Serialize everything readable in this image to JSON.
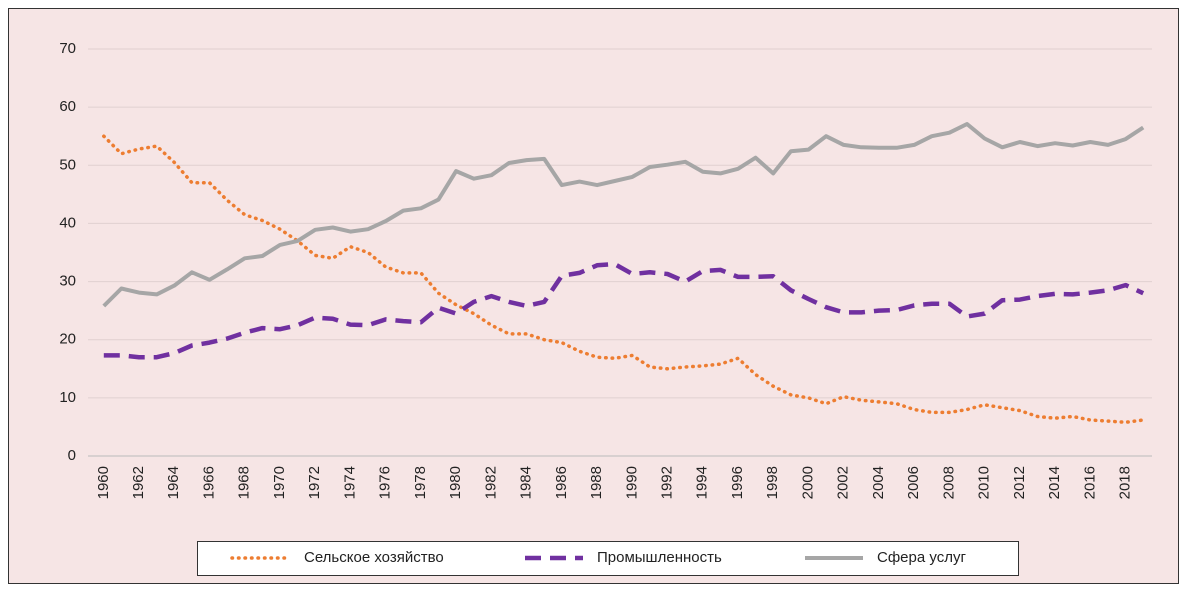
{
  "chart_data": {
    "type": "line",
    "categories": [
      "1960",
      null,
      "1962",
      null,
      "1964",
      null,
      "1966",
      null,
      "1968",
      null,
      "1970",
      null,
      "1972",
      null,
      "1974",
      null,
      "1976",
      null,
      "1978",
      null,
      "1980",
      null,
      "1982",
      null,
      "1984",
      null,
      "1986",
      null,
      "1988",
      null,
      "1990",
      null,
      "1992",
      null,
      "1994",
      null,
      "1996",
      null,
      "1998",
      null,
      "2000",
      null,
      "2002",
      null,
      "2004",
      null,
      "2006",
      null,
      "2008",
      null,
      "2010",
      null,
      "2012",
      null,
      "2014",
      null,
      "2016",
      null,
      "2018",
      null
    ],
    "series": [
      {
        "name": "Сельское хозяйство",
        "color": "#ed7d31",
        "style": "dotted",
        "values": [
          55,
          52,
          52.8,
          53.3,
          50.5,
          47,
          47,
          44,
          41.5,
          40.5,
          39,
          37,
          34.5,
          34,
          36,
          35,
          32.5,
          31.5,
          31.5,
          28,
          26,
          24.5,
          22.5,
          21,
          21,
          20,
          19.5,
          18,
          17,
          16.8,
          17.3,
          15.3,
          15,
          15.3,
          15.5,
          15.8,
          16.8,
          14,
          12,
          10.5,
          10,
          9,
          10.2,
          9.6,
          9.3,
          9,
          8,
          7.5,
          7.5,
          8,
          8.8,
          8.3,
          7.8,
          6.8,
          6.5,
          6.8,
          6.2,
          6,
          5.8,
          6.2
        ]
      },
      {
        "name": "Промышленность",
        "color": "#7030a0",
        "style": "dashed",
        "values": [
          17.3,
          17.3,
          17,
          17,
          17.7,
          19,
          19.5,
          20.2,
          21.2,
          22,
          21.8,
          22.5,
          23.8,
          23.6,
          22.6,
          22.5,
          23.5,
          23.2,
          23,
          25.5,
          24.5,
          26.5,
          27.5,
          26.5,
          25.8,
          26.5,
          31,
          31.5,
          32.8,
          33,
          31.3,
          31.6,
          31.3,
          30,
          31.8,
          32,
          30.8,
          30.8,
          30.9,
          28.5,
          27,
          25.6,
          24.7,
          24.7,
          25,
          25.1,
          25.9,
          26.2,
          26.2,
          24,
          24.5,
          26.8,
          26.9,
          27.5,
          27.9,
          27.8,
          28.1,
          28.5,
          29.4,
          28
        ]
      },
      {
        "name": "Сфера услуг",
        "color": "#a6a6a6",
        "style": "solid",
        "values": [
          25.8,
          28.8,
          28.1,
          27.8,
          29.3,
          31.6,
          30.3,
          32.1,
          34,
          34.4,
          36.3,
          37,
          38.9,
          39.3,
          38.6,
          39,
          40.4,
          42.2,
          42.6,
          44.1,
          49,
          47.7,
          48.3,
          50.4,
          50.9,
          51.1,
          46.6,
          47.2,
          46.6,
          47.3,
          48,
          49.7,
          50.1,
          50.6,
          48.9,
          48.6,
          49.4,
          51.3,
          48.6,
          52.4,
          52.7,
          55,
          53.5,
          53.1,
          53,
          53,
          53.5,
          55,
          55.6,
          57.1,
          54.6,
          53.1,
          54,
          53.3,
          53.8,
          53.4,
          54,
          53.5,
          54.5,
          56.5
        ]
      }
    ],
    "ylim": [
      0,
      70
    ],
    "yticks": [
      0,
      10,
      20,
      30,
      40,
      50,
      60,
      70
    ],
    "grid": true,
    "legend": "bottom"
  }
}
